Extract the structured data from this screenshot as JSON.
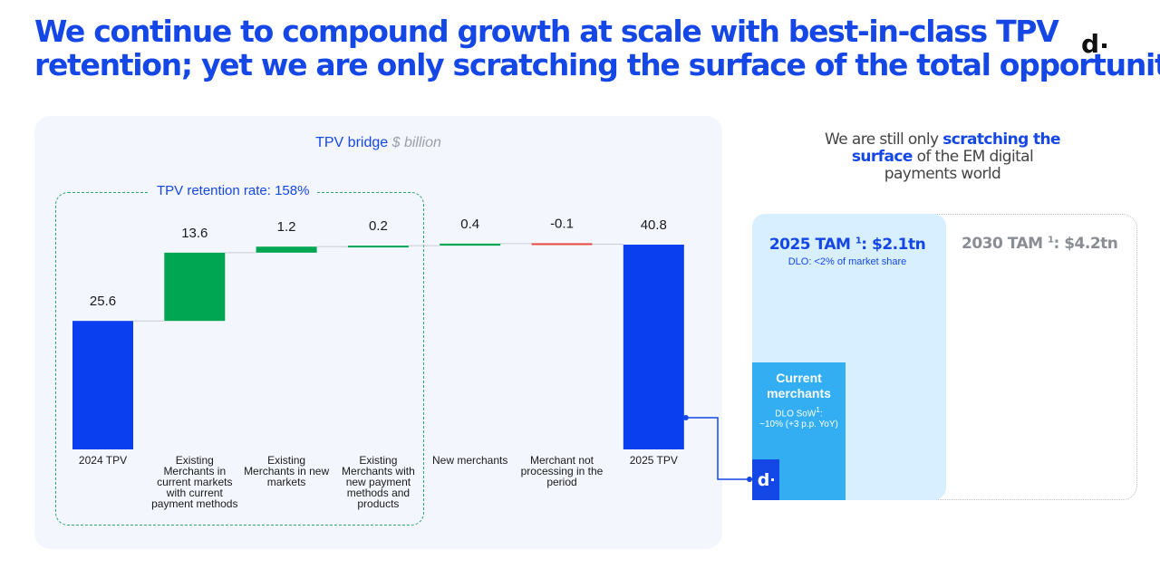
{
  "header": {
    "title_line1": "We continue to compound growth at scale with best-in-class TPV",
    "title_line2": "retention; yet we are only scratching the surface of the total opportunity",
    "logo": "d"
  },
  "chart_panel": {
    "title": "TPV bridge",
    "unit": "$ billion",
    "retention_label": "TPV retention rate: 158%"
  },
  "chart_data": {
    "type": "bar",
    "title": "TPV bridge",
    "subtitle": "$ billion",
    "variant": "waterfall",
    "categories": [
      "2024 TPV",
      "Existing Merchants in current markets with current payment methods",
      "Existing Merchants in new markets",
      "Existing Merchants with new payment methods and products",
      "New merchants",
      "Merchant not processing in the period",
      "2025 TPV"
    ],
    "category_lines": [
      [
        "2024 TPV"
      ],
      [
        "Existing",
        "Merchants in",
        "current markets",
        "with current",
        "payment methods"
      ],
      [
        "Existing",
        "Merchants in new",
        "markets"
      ],
      [
        "Existing",
        "Merchants with",
        "new payment",
        "methods and",
        "products"
      ],
      [
        "New merchants"
      ],
      [
        "Merchant not",
        "processing in the",
        "period"
      ],
      [
        "2025 TPV"
      ]
    ],
    "values": [
      25.6,
      13.6,
      1.2,
      0.2,
      0.4,
      -0.1,
      40.8
    ],
    "value_labels": [
      "25.6",
      "13.6",
      "1.2",
      "0.2",
      "0.4",
      "-0.1",
      "40.8"
    ],
    "kinds": [
      "total",
      "delta",
      "delta",
      "delta",
      "delta",
      "delta",
      "total"
    ],
    "ylim": [
      0,
      40.8
    ],
    "xlabel": "",
    "ylabel": "",
    "colors": {
      "total": "#0a3ff0",
      "increase": "#00a651",
      "decrease": "#e8473d"
    }
  },
  "tam": {
    "intro_pre": "We are still only ",
    "intro_highlight1": "scratching the",
    "intro_highlight2": "surface",
    "intro_post1": " of the EM digital",
    "intro_post2": "payments world",
    "tam_2030_label": "2030 TAM ",
    "tam_2030_sup": "1",
    "tam_2030_value": ": $4.2tn",
    "tam_2025_label": "2025 TAM ",
    "tam_2025_sup": "1",
    "tam_2025_value": ": $2.1tn",
    "tam_2025_sub": "DLO: <2% of market share",
    "merchants_title1": "Current",
    "merchants_title2": "merchants",
    "merchants_sub1": "DLO SoW",
    "merchants_sub_sup": "1",
    "merchants_sub_colon": ":",
    "merchants_sub2": "~10% (+3 p.p. YoY)",
    "logo": "d"
  }
}
